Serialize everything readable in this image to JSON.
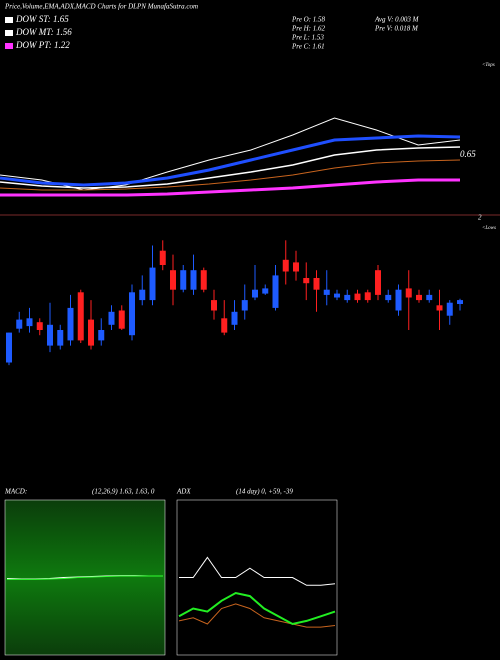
{
  "header": {
    "title": "Price,Volume,EMA,ADX,MACD Charts for DLPN  MunafaSutra.com",
    "legend": [
      {
        "label": "DOW ST: 1.65",
        "color": "#ffffff"
      },
      {
        "label": "DOW MT: 1.56",
        "color": "#ffffff"
      },
      {
        "label": "DOW PT: 1.22",
        "color": "#ff33ff"
      }
    ],
    "ohlc": [
      "Pre  O: 1.58",
      "Pre  H: 1.62",
      "Pre  L: 1.53",
      "Pre  C: 1.61"
    ],
    "volume": [
      "Avg V: 0.003 M",
      "Pre  V: 0.018 M"
    ]
  },
  "chart_data": [
    {
      "type": "line",
      "annotations": [
        "<Tops",
        "0.65",
        "2",
        "<Lows"
      ],
      "x": [
        0,
        4,
        8,
        12,
        16,
        20,
        24,
        28,
        32,
        36,
        40,
        44
      ],
      "xlim": [
        0,
        44
      ],
      "ylim": [
        0.87,
        2.42
      ],
      "series": [
        {
          "color": "#ffffff",
          "width": 1,
          "values": [
            1.27,
            1.22,
            1.12,
            1.17,
            1.3,
            1.42,
            1.52,
            1.67,
            1.84,
            1.72,
            1.57,
            1.62
          ]
        },
        {
          "color": "#ff33ff",
          "width": 3,
          "values": [
            1.07,
            1.07,
            1.07,
            1.07,
            1.08,
            1.1,
            1.12,
            1.14,
            1.17,
            1.2,
            1.22,
            1.22
          ]
        },
        {
          "color": "#c8641e",
          "width": 1,
          "values": [
            1.14,
            1.12,
            1.12,
            1.13,
            1.15,
            1.18,
            1.22,
            1.27,
            1.34,
            1.39,
            1.41,
            1.42
          ]
        },
        {
          "color": "#ffffff",
          "width": 1.5,
          "values": [
            1.2,
            1.16,
            1.14,
            1.15,
            1.18,
            1.24,
            1.3,
            1.37,
            1.47,
            1.52,
            1.54,
            1.55
          ]
        },
        {
          "color": "#1f4fff",
          "width": 3,
          "values": [
            1.24,
            1.19,
            1.17,
            1.19,
            1.24,
            1.32,
            1.42,
            1.52,
            1.62,
            1.64,
            1.66,
            1.65
          ]
        }
      ]
    },
    {
      "type": "candlestick",
      "ylim": [
        1.08,
        2.08
      ],
      "up_color": "#1e5bff",
      "down_color": "#ff2020",
      "open": [
        1.13,
        1.39,
        1.41,
        1.44,
        1.26,
        1.26,
        1.3,
        1.67,
        1.46,
        1.3,
        1.42,
        1.53,
        1.34,
        1.61,
        1.61,
        1.99,
        1.84,
        1.69,
        1.69,
        1.84,
        1.61,
        1.47,
        1.42,
        1.53,
        1.63,
        1.66,
        1.55,
        1.92,
        1.9,
        1.78,
        1.78,
        1.65,
        1.63,
        1.61,
        1.66,
        1.67,
        1.84,
        1.61,
        1.53,
        1.7,
        1.65,
        1.61,
        1.57,
        1.49,
        1.58
      ],
      "high": [
        1.36,
        1.52,
        1.55,
        1.47,
        1.59,
        1.42,
        1.65,
        1.69,
        1.61,
        1.47,
        1.57,
        1.57,
        1.73,
        1.8,
        2.03,
        2.07,
        1.96,
        1.88,
        1.96,
        1.86,
        1.69,
        1.61,
        1.61,
        1.73,
        1.88,
        1.73,
        1.88,
        2.07,
        1.99,
        1.9,
        1.84,
        1.84,
        1.69,
        1.69,
        1.69,
        1.69,
        1.88,
        1.69,
        1.73,
        1.84,
        1.69,
        1.69,
        1.69,
        1.61,
        1.62
      ],
      "low": [
        1.11,
        1.36,
        1.36,
        1.34,
        1.21,
        1.23,
        1.26,
        1.28,
        1.23,
        1.26,
        1.38,
        1.38,
        1.3,
        1.57,
        1.57,
        1.84,
        1.57,
        1.67,
        1.65,
        1.67,
        1.46,
        1.34,
        1.38,
        1.46,
        1.61,
        1.65,
        1.53,
        1.73,
        1.76,
        1.61,
        1.52,
        1.57,
        1.61,
        1.59,
        1.59,
        1.59,
        1.61,
        1.59,
        1.49,
        1.38,
        1.59,
        1.59,
        1.38,
        1.42,
        1.53
      ],
      "close": [
        1.36,
        1.46,
        1.47,
        1.38,
        1.42,
        1.38,
        1.55,
        1.3,
        1.26,
        1.38,
        1.52,
        1.39,
        1.67,
        1.69,
        1.86,
        1.88,
        1.69,
        1.84,
        1.84,
        1.69,
        1.53,
        1.36,
        1.52,
        1.61,
        1.69,
        1.7,
        1.8,
        1.83,
        1.83,
        1.74,
        1.69,
        1.69,
        1.66,
        1.65,
        1.61,
        1.61,
        1.65,
        1.65,
        1.69,
        1.63,
        1.61,
        1.65,
        1.53,
        1.59,
        1.61
      ]
    },
    {
      "type": "line",
      "title": "MACD:",
      "subtitle": "(12,26,9) 1.63, 1.63, 0",
      "x": [
        0,
        1,
        2,
        3,
        4,
        5,
        6,
        7,
        8,
        9,
        10,
        11
      ],
      "xlim": [
        0,
        11
      ],
      "ylim": [
        0,
        3.2
      ],
      "series": [
        {
          "color": "#ffffff",
          "width": 1,
          "values": [
            1.58,
            1.57,
            1.57,
            1.58,
            1.6,
            1.61,
            1.62,
            1.63,
            1.64,
            1.64,
            1.63,
            1.63
          ]
        },
        {
          "color": "#33ff33",
          "width": 1,
          "values": [
            1.56,
            1.56,
            1.56,
            1.57,
            1.58,
            1.6,
            1.61,
            1.62,
            1.63,
            1.63,
            1.63,
            1.63
          ]
        }
      ]
    },
    {
      "type": "line",
      "title": "ADX",
      "subtitle": "(14 day) 0, +59, -39",
      "x": [
        0,
        1,
        2,
        3,
        4,
        5,
        6,
        7,
        8,
        9,
        10,
        11
      ],
      "xlim": [
        0,
        11
      ],
      "ylim": [
        0,
        100
      ],
      "series": [
        {
          "color": "#ffffff",
          "width": 1,
          "values": [
            50,
            50,
            63,
            50,
            50,
            56,
            50,
            50,
            50,
            45,
            45,
            46
          ]
        },
        {
          "color": "#c8641e",
          "width": 1,
          "values": [
            22,
            24,
            20,
            30,
            33,
            30,
            24,
            22,
            20,
            18,
            18,
            19
          ]
        },
        {
          "color": "#22ee22",
          "width": 2,
          "values": [
            25,
            30,
            28,
            35,
            40,
            38,
            30,
            25,
            20,
            22,
            25,
            28
          ]
        }
      ]
    }
  ]
}
